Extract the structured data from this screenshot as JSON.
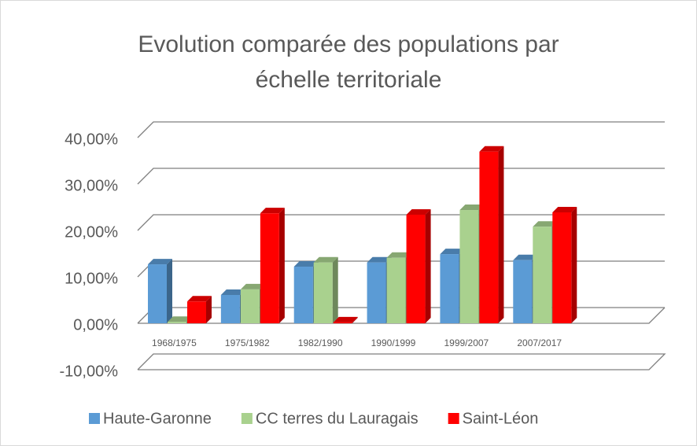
{
  "chart_data": {
    "type": "bar3d",
    "title": "Evolution comparée des populations par",
    "title_line2": "échelle territoriale",
    "categories": [
      "1968/1975",
      "1975/1982",
      "1982/1990",
      "1990/1999",
      "1999/2007",
      "2007/2017",
      null
    ],
    "series": [
      {
        "name": "Haute-Garonne",
        "color": "#5b9bd5",
        "values": [
          12.7,
          6.1,
          12.2,
          13.1,
          14.9,
          13.6,
          null
        ]
      },
      {
        "name": "CC terres du Lauragais",
        "color": "#a9d18e",
        "values": [
          0.3,
          7.3,
          13.1,
          14.1,
          24.4,
          20.8,
          null
        ]
      },
      {
        "name": "Saint-Léon",
        "color": "#ff0000",
        "values": [
          4.7,
          23.7,
          0.2,
          23.4,
          37.0,
          23.9,
          null
        ]
      }
    ],
    "ylim": [
      -10,
      40
    ],
    "yticks": [
      {
        "value": -10,
        "label": "-10,00%"
      },
      {
        "value": 0,
        "label": "0,00%"
      },
      {
        "value": 10,
        "label": "10,00%"
      },
      {
        "value": 20,
        "label": "20,00%"
      },
      {
        "value": 30,
        "label": "30,00%"
      },
      {
        "value": 40,
        "label": "40,00%"
      }
    ],
    "grid": true,
    "legend": "bottom"
  }
}
